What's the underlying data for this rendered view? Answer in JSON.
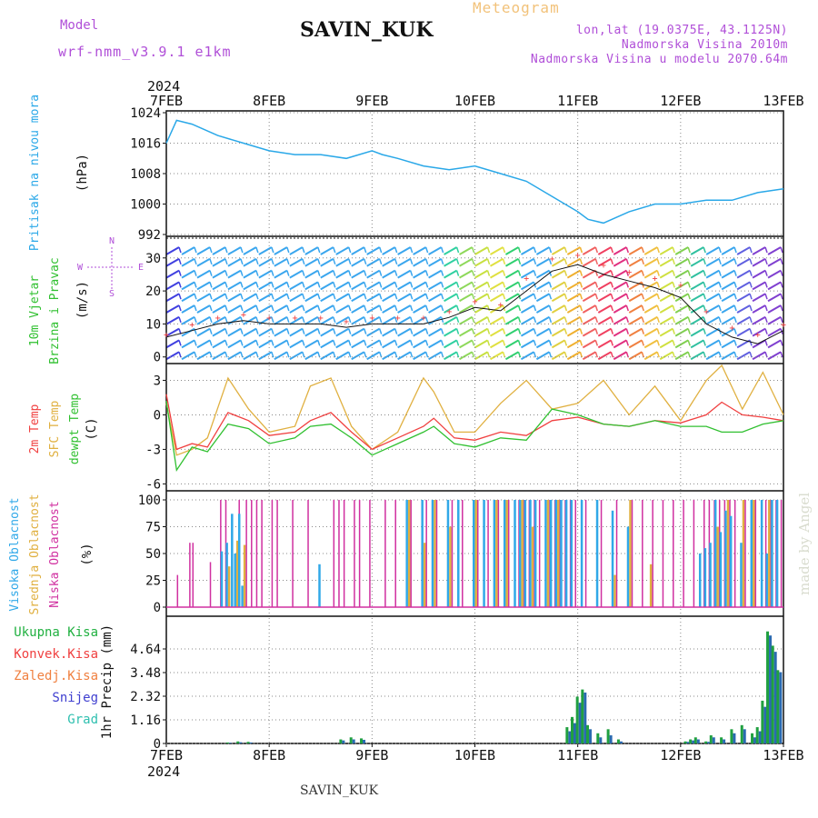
{
  "header": {
    "meteogram_label": "Meteogram",
    "model_label": "Model",
    "model_value": "wrf-nmm_v3.9.1 e1km",
    "station_title": "SAVIN_KUK",
    "lonlat": "lon,lat (19.0375E, 43.1125N)",
    "elevation": "Nadmorska Visina 2010m",
    "model_elevation": "Nadmorska Visina u modelu 2070.64m",
    "footer_station": "SAVIN_KUK",
    "watermark": "made by Angel"
  },
  "time_axis": {
    "year": "2024",
    "labels": [
      "7FEB",
      "8FEB",
      "9FEB",
      "10FEB",
      "11FEB",
      "12FEB",
      "13FEB"
    ]
  },
  "colors": {
    "pressure": "#2aa8e8",
    "temp_2m": "#f04040",
    "temp_sfc": "#e0b040",
    "dewpoint": "#30c030",
    "cloud_high": "#30a8e8",
    "cloud_mid": "#e0b040",
    "cloud_low": "#d030a0",
    "precip_total": "#20a040",
    "precip_snow": "#4040d0",
    "precip_grad": "#30c0b0",
    "wind_gust": "#f04040",
    "wind_speed": "#111111"
  },
  "chart_data": [
    {
      "type": "line",
      "panel": "pressure",
      "ylabel_main": "Pritisak na nivou mora",
      "unit": "(hPa)",
      "yticks": [
        "1024",
        "1016",
        "1008",
        "1000",
        "992"
      ],
      "ylim": [
        992,
        1024
      ],
      "x": [
        0,
        0.1,
        0.25,
        0.5,
        0.75,
        1.0,
        1.25,
        1.5,
        1.75,
        2.0,
        2.1,
        2.25,
        2.5,
        2.75,
        3.0,
        3.25,
        3.5,
        3.75,
        4.0,
        4.1,
        4.25,
        4.5,
        4.75,
        5.0,
        5.25,
        5.5,
        5.75,
        6.0
      ],
      "series": [
        {
          "values": [
            1016,
            1022,
            1021,
            1018,
            1016,
            1014,
            1013,
            1013,
            1012,
            1014,
            1013,
            1012,
            1010,
            1009,
            1010,
            1008,
            1006,
            1002,
            998,
            996,
            995,
            998,
            1000,
            1000,
            1001,
            1001,
            1003,
            1004
          ]
        }
      ]
    },
    {
      "type": "line",
      "panel": "wind",
      "ylabel_main": "10m Vjetar",
      "ylabel_sub": "Brzina i Pravac",
      "unit": "(m/s)",
      "compass": {
        "n": "N",
        "e": "E",
        "w": "W",
        "s": "S"
      },
      "yticks": [
        "30",
        "20",
        "10",
        "0"
      ],
      "ylim": [
        -2,
        36
      ],
      "x": [
        0,
        0.25,
        0.5,
        0.75,
        1.0,
        1.25,
        1.5,
        1.75,
        2.0,
        2.25,
        2.5,
        2.75,
        3.0,
        3.25,
        3.5,
        3.75,
        4.0,
        4.25,
        4.5,
        4.75,
        5.0,
        5.25,
        5.5,
        5.75,
        6.0
      ],
      "series": [
        {
          "values": [
            6,
            8,
            10,
            11,
            10,
            10,
            10,
            9,
            10,
            10,
            10,
            12,
            15,
            14,
            20,
            26,
            28,
            25,
            23,
            21,
            18,
            10,
            6,
            4,
            8
          ]
        },
        {
          "values": [
            7,
            10,
            12,
            13,
            12,
            12,
            12,
            11,
            12,
            12,
            12,
            14,
            17,
            16,
            24,
            30,
            31,
            28,
            26,
            24,
            22,
            14,
            9,
            7,
            10
          ]
        }
      ]
    },
    {
      "type": "line",
      "panel": "temperature",
      "ylabel_lines": [
        "2m Temp",
        "SFC Temp",
        "dewpt Temp"
      ],
      "unit": "(C)",
      "yticks": [
        "3",
        "0",
        "-3",
        "-6"
      ],
      "ylim": [
        -6.6,
        4.3
      ],
      "x": [
        0,
        0.1,
        0.25,
        0.4,
        0.6,
        0.8,
        1.0,
        1.25,
        1.4,
        1.6,
        1.8,
        2.0,
        2.25,
        2.5,
        2.6,
        2.8,
        3.0,
        3.25,
        3.5,
        3.75,
        4.0,
        4.25,
        4.5,
        4.75,
        5.0,
        5.25,
        5.4,
        5.6,
        5.8,
        6.0
      ],
      "series": [
        {
          "name": "2m Temp",
          "values": [
            1.8,
            -3.0,
            -2.5,
            -2.8,
            0.2,
            -0.5,
            -1.8,
            -1.5,
            -0.5,
            0.2,
            -1.5,
            -3.0,
            -2.0,
            -1.0,
            -0.3,
            -2.0,
            -2.2,
            -1.5,
            -1.8,
            -0.5,
            -0.2,
            -0.8,
            -1.0,
            -0.5,
            -0.7,
            0.0,
            1.1,
            0.0,
            -0.2,
            -0.5
          ]
        },
        {
          "name": "SFC Temp",
          "values": [
            1.0,
            -3.5,
            -3.0,
            -2.0,
            3.2,
            0.5,
            -1.5,
            -1.0,
            2.5,
            3.2,
            -1.0,
            -3.0,
            -1.5,
            3.2,
            2.0,
            -1.5,
            -1.5,
            1.0,
            3.0,
            0.5,
            1.0,
            3.0,
            0.0,
            2.5,
            -0.5,
            3.0,
            4.3,
            0.5,
            3.7,
            0.0
          ]
        },
        {
          "name": "dewpt Temp",
          "values": [
            1.2,
            -4.8,
            -2.8,
            -3.2,
            -0.8,
            -1.2,
            -2.5,
            -2.0,
            -1.0,
            -0.8,
            -2.0,
            -3.5,
            -2.5,
            -1.5,
            -1.0,
            -2.5,
            -2.8,
            -2.0,
            -2.2,
            0.5,
            0.0,
            -0.8,
            -1.0,
            -0.5,
            -1.0,
            -1.0,
            -1.5,
            -1.5,
            -0.8,
            -0.5
          ]
        }
      ]
    },
    {
      "type": "bar",
      "panel": "clouds",
      "ylabel_lines": [
        "Visoka Oblacnost",
        "Srednja Oblacnost",
        "Niska Oblacnost"
      ],
      "unit": "(%)",
      "yticks": [
        "100",
        "75",
        "50",
        "25",
        "0"
      ],
      "ylim": [
        0,
        100
      ],
      "x": [
        0.08,
        0.2,
        0.23,
        0.4,
        0.5,
        0.55,
        0.6,
        0.65,
        0.68,
        0.72,
        0.75,
        0.8,
        0.85,
        0.9,
        1.0,
        1.05,
        1.2,
        1.35,
        1.5,
        1.6,
        1.65,
        1.7,
        1.8,
        1.85,
        1.95,
        2.1,
        2.2,
        2.35,
        2.5,
        2.6,
        2.75,
        2.85,
        3.0,
        3.1,
        3.2,
        3.3,
        3.4,
        3.45,
        3.5,
        3.55,
        3.6,
        3.7,
        3.75,
        3.8,
        3.85,
        3.9,
        3.95,
        4.05,
        4.2,
        4.35,
        4.5,
        4.6,
        4.7,
        4.8,
        4.9,
        5.0,
        5.1,
        5.2,
        5.25,
        5.3,
        5.35,
        5.4,
        5.45,
        5.5,
        5.6,
        5.7,
        5.8,
        5.85,
        5.9,
        5.95
      ],
      "series": [
        {
          "name": "Visoka Oblacnost",
          "values": [
            0,
            0,
            0,
            0,
            0,
            52,
            60,
            87,
            50,
            87,
            20,
            0,
            0,
            0,
            0,
            0,
            0,
            0,
            40,
            0,
            0,
            0,
            0,
            0,
            0,
            0,
            0,
            100,
            100,
            100,
            100,
            100,
            100,
            100,
            100,
            100,
            100,
            100,
            100,
            100,
            100,
            100,
            100,
            100,
            100,
            100,
            100,
            100,
            100,
            90,
            75,
            0,
            0,
            0,
            0,
            0,
            0,
            50,
            55,
            60,
            100,
            70,
            90,
            85,
            60,
            100,
            100,
            50,
            100,
            100
          ]
        },
        {
          "name": "Srednja Oblacnost",
          "values": [
            0,
            0,
            0,
            0,
            0,
            0,
            38,
            0,
            62,
            0,
            58,
            0,
            0,
            0,
            0,
            0,
            0,
            0,
            0,
            0,
            0,
            0,
            0,
            0,
            0,
            0,
            0,
            100,
            60,
            100,
            75,
            0,
            100,
            0,
            100,
            100,
            0,
            100,
            0,
            75,
            0,
            100,
            0,
            100,
            0,
            0,
            0,
            0,
            0,
            30,
            100,
            0,
            40,
            0,
            0,
            0,
            0,
            0,
            0,
            0,
            75,
            0,
            100,
            0,
            100,
            100,
            0,
            100,
            0,
            0
          ]
        },
        {
          "name": "Niska Oblacnost",
          "values": [
            30,
            60,
            60,
            42,
            100,
            100,
            0,
            0,
            100,
            0,
            100,
            100,
            100,
            100,
            100,
            100,
            100,
            100,
            0,
            100,
            100,
            100,
            100,
            100,
            100,
            100,
            100,
            100,
            100,
            100,
            100,
            100,
            100,
            100,
            100,
            100,
            100,
            100,
            100,
            100,
            100,
            100,
            100,
            100,
            100,
            100,
            100,
            100,
            100,
            100,
            100,
            100,
            100,
            100,
            100,
            100,
            100,
            100,
            100,
            100,
            100,
            100,
            100,
            100,
            100,
            100,
            100,
            100,
            100,
            100
          ]
        }
      ]
    },
    {
      "type": "bar",
      "panel": "precipitation",
      "ylabel_main": "1hr Precip (mm)",
      "legend_lines": [
        "Ukupna Kisa",
        "Konvek.Kisa",
        "Zaledj.Kisa",
        "Snijeg",
        "Grad"
      ],
      "yticks": [
        "4.64",
        "3.48",
        "2.32",
        "1.16",
        "0"
      ],
      "ylim": [
        0,
        5.8
      ],
      "x": [
        0.6,
        0.7,
        0.8,
        1.7,
        1.8,
        1.9,
        3.9,
        3.95,
        4.0,
        4.05,
        4.1,
        4.2,
        4.3,
        4.4,
        5.05,
        5.1,
        5.15,
        5.25,
        5.3,
        5.4,
        5.5,
        5.6,
        5.7,
        5.75,
        5.8,
        5.85,
        5.9,
        5.95
      ],
      "series": [
        {
          "name": "Ukupna Kisa",
          "values": [
            0.05,
            0.1,
            0.08,
            0.2,
            0.3,
            0.25,
            0.8,
            1.3,
            2.3,
            2.65,
            0.9,
            0.5,
            0.7,
            0.2,
            0.1,
            0.2,
            0.3,
            0.1,
            0.4,
            0.3,
            0.7,
            0.9,
            0.5,
            0.8,
            2.1,
            5.5,
            4.8,
            3.6
          ]
        },
        {
          "name": "Snijeg",
          "values": [
            0.03,
            0.06,
            0.05,
            0.15,
            0.2,
            0.18,
            0.6,
            1.0,
            2.0,
            2.5,
            0.7,
            0.3,
            0.4,
            0.1,
            0.08,
            0.15,
            0.2,
            0.08,
            0.3,
            0.2,
            0.5,
            0.7,
            0.3,
            0.6,
            1.8,
            5.3,
            4.5,
            3.5
          ]
        }
      ]
    }
  ]
}
